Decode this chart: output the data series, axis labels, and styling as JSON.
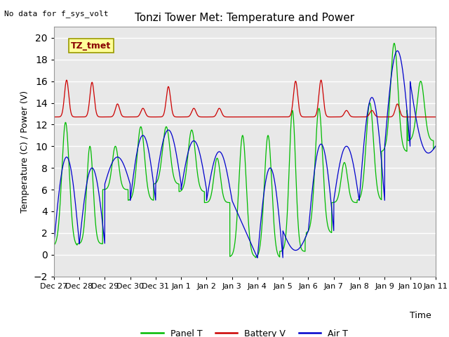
{
  "title": "Tonzi Tower Met: Temperature and Power",
  "top_left_text": "No data for f_sys_volt",
  "ylabel": "Temperature (C) / Power (V)",
  "xlabel": "Time",
  "annotation_label": "TZ_tmet",
  "ylim": [
    -2,
    21
  ],
  "yticks": [
    -2,
    0,
    2,
    4,
    6,
    8,
    10,
    12,
    14,
    16,
    18,
    20
  ],
  "xtick_labels": [
    "Dec 27",
    "Dec 28",
    "Dec 29",
    "Dec 30",
    "Dec 31",
    "Jan 1",
    "Jan 2",
    "Jan 3",
    "Jan 4",
    "Jan 5",
    "Jan 6",
    "Jan 7",
    "Jan 8",
    "Jan 9",
    "Jan 10",
    "Jan 11"
  ],
  "xtick_positions": [
    0,
    24,
    48,
    72,
    96,
    120,
    144,
    168,
    192,
    216,
    240,
    264,
    288,
    312,
    336,
    360
  ],
  "fig_bg_color": "#ffffff",
  "plot_bg_color": "#e8e8e8",
  "grid_color": "#ffffff",
  "panel_color": "#00bb00",
  "battery_color": "#cc0000",
  "air_color": "#0000cc",
  "legend_labels": [
    "Panel T",
    "Battery V",
    "Air T"
  ],
  "figsize": [
    6.4,
    4.8
  ],
  "dpi": 100,
  "title_fontsize": 11,
  "label_fontsize": 9,
  "tick_fontsize": 8
}
